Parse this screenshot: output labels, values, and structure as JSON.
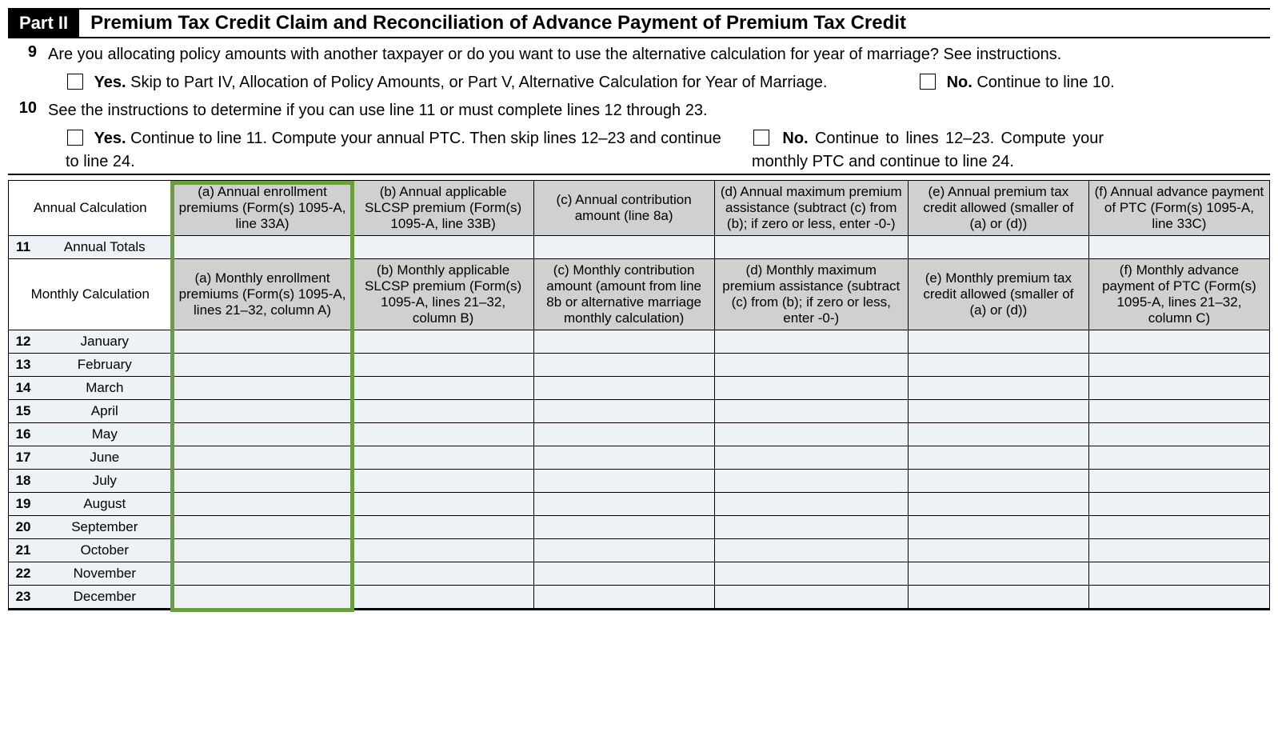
{
  "part": {
    "label": "Part II",
    "title": "Premium Tax Credit Claim and Reconciliation of Advance Payment of Premium Tax Credit"
  },
  "q9": {
    "num": "9",
    "text": "Are you allocating policy amounts with another taxpayer or do you want to use the alternative calculation for year of marriage? See instructions.",
    "yes_label": "Yes.",
    "yes_text": " Skip to Part IV, Allocation of Policy Amounts, or Part V, Alternative Calculation for Year of Marriage.",
    "no_label": "No.",
    "no_text": " Continue to line 10."
  },
  "q10": {
    "num": "10",
    "text": "See the instructions to determine if you can use line 11 or must complete lines 12 through 23.",
    "yes_label": "Yes.",
    "yes_text": " Continue to line 11. Compute your annual PTC. Then skip lines 12–23 and continue to line 24.",
    "no_label": "No.",
    "no_text": " Continue to lines 12–23. Compute your monthly PTC and continue to line 24."
  },
  "annual_calc_label": "Annual Calculation",
  "monthly_calc_label": "Monthly Calculation",
  "annual_headers": {
    "a": "(a) Annual enrollment premiums (Form(s) 1095-A, line 33A)",
    "b": "(b) Annual applicable SLCSP premium (Form(s) 1095-A, line 33B)",
    "c": "(c) Annual contribution amount (line 8a)",
    "d": "(d) Annual maximum premium assistance (subtract (c) from (b); if zero or less, enter -0-)",
    "e": "(e) Annual premium tax credit allowed (smaller of (a) or (d))",
    "f": "(f) Annual advance payment of PTC (Form(s) 1095-A, line 33C)"
  },
  "monthly_headers": {
    "a": "(a) Monthly enrollment premiums (Form(s) 1095-A, lines 21–32, column A)",
    "b": "(b) Monthly applicable SLCSP premium (Form(s) 1095-A, lines 21–32, column B)",
    "c": "(c) Monthly contribution amount (amount from line 8b or alternative marriage monthly calculation)",
    "d": "(d) Monthly maximum premium assistance (subtract (c) from (b); if zero or less, enter -0-)",
    "e": "(e) Monthly premium tax credit allowed (smaller of (a) or (d))",
    "f": "(f) Monthly advance payment of PTC (Form(s) 1095-A, lines 21–32, column C)"
  },
  "row11": {
    "num": "11",
    "label": "Annual Totals"
  },
  "months": [
    {
      "num": "12",
      "label": "January"
    },
    {
      "num": "13",
      "label": "February"
    },
    {
      "num": "14",
      "label": "March"
    },
    {
      "num": "15",
      "label": "April"
    },
    {
      "num": "16",
      "label": "May"
    },
    {
      "num": "17",
      "label": "June"
    },
    {
      "num": "18",
      "label": "July"
    },
    {
      "num": "19",
      "label": "August"
    },
    {
      "num": "20",
      "label": "September"
    },
    {
      "num": "21",
      "label": "October"
    },
    {
      "num": "22",
      "label": "November"
    },
    {
      "num": "23",
      "label": "December"
    }
  ],
  "colors": {
    "header_bg": "#d0d0d0",
    "zebra": "#edf2f7",
    "highlight_border": "#6b9e3e",
    "black": "#000000",
    "white": "#ffffff"
  },
  "col_widths": {
    "num": 34,
    "label": 146,
    "data": 210
  },
  "highlight_column_index": 0
}
